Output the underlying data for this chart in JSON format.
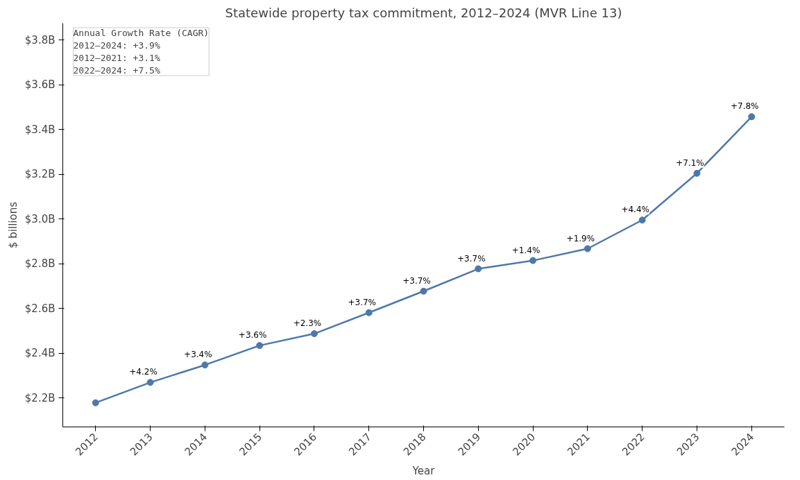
{
  "chart_data": {
    "type": "line",
    "title": "Statewide property tax commitment, 2012–2024 (MVR Line 13)",
    "xlabel": "Year",
    "ylabel": "$ billions",
    "categories": [
      "2012",
      "2013",
      "2014",
      "2015",
      "2016",
      "2017",
      "2018",
      "2019",
      "2020",
      "2021",
      "2022",
      "2023",
      "2024"
    ],
    "series": [
      {
        "color": "#4e78a8",
        "values": [
          2.178,
          2.269,
          2.347,
          2.434,
          2.487,
          2.581,
          2.677,
          2.777,
          2.814,
          2.867,
          2.995,
          3.204,
          3.457
        ]
      }
    ],
    "ylim": [
      2.07,
      3.875
    ],
    "yticks": [
      {
        "value": 2.2,
        "label": "$2.2B"
      },
      {
        "value": 2.4,
        "label": "$2.4B"
      },
      {
        "value": 2.6,
        "label": "$2.6B"
      },
      {
        "value": 2.8,
        "label": "$2.8B"
      },
      {
        "value": 3.0,
        "label": "$3.0B"
      },
      {
        "value": 3.2,
        "label": "$3.2B"
      },
      {
        "value": 3.4,
        "label": "$3.4B"
      },
      {
        "value": 3.6,
        "label": "$3.6B"
      },
      {
        "value": 3.8,
        "label": "$3.8B"
      }
    ],
    "marker": "circle",
    "line_style": "solid",
    "grid": false,
    "annotations": [
      {
        "text": "+4.2%",
        "x": "2013",
        "y": 2.269
      },
      {
        "text": "+3.4%",
        "x": "2014",
        "y": 2.347
      },
      {
        "text": "+3.6%",
        "x": "2015",
        "y": 2.434
      },
      {
        "text": "+2.3%",
        "x": "2016",
        "y": 2.487
      },
      {
        "text": "+3.7%",
        "x": "2017",
        "y": 2.581
      },
      {
        "text": "+3.7%",
        "x": "2018",
        "y": 2.677
      },
      {
        "text": "+3.7%",
        "x": "2019",
        "y": 2.777
      },
      {
        "text": "+1.4%",
        "x": "2020",
        "y": 2.814
      },
      {
        "text": "+1.9%",
        "x": "2021",
        "y": 2.867
      },
      {
        "text": "+4.4%",
        "x": "2022",
        "y": 2.995
      },
      {
        "text": "+7.1%",
        "x": "2023",
        "y": 3.204
      },
      {
        "text": "+7.8%",
        "x": "2024",
        "y": 3.457
      },
      "Annual Growth Rate (CAGR)",
      "2012–2024: +3.9%",
      "2012–2021: +3.1%",
      "2022–2024: +7.5%"
    ]
  }
}
